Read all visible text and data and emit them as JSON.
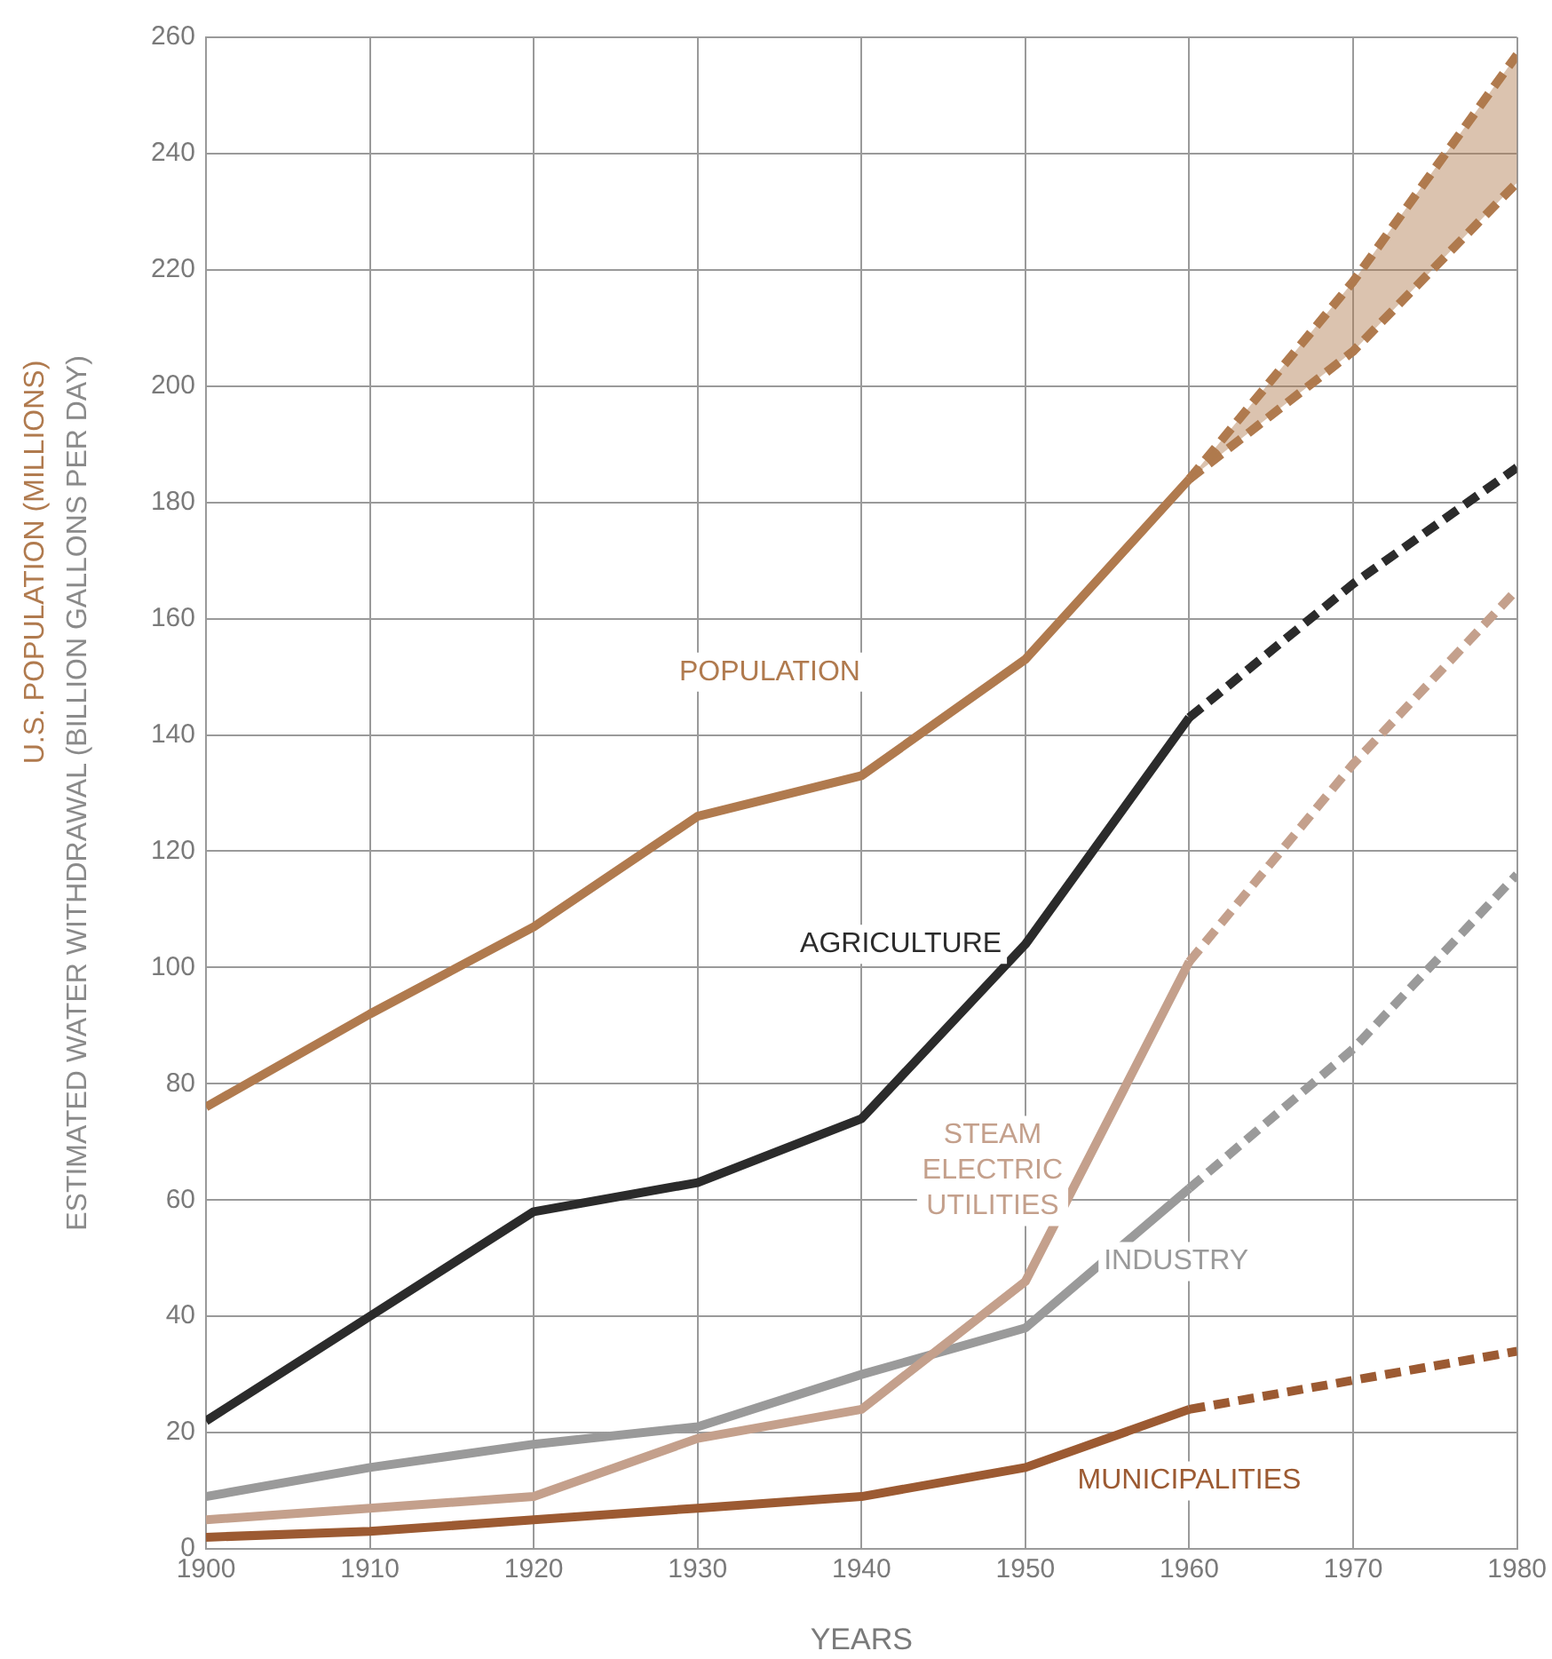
{
  "chart_data": {
    "type": "line",
    "xlabel": "YEARS",
    "ylabel": "ESTIMATED WATER WITHDRAWAL (BILLION GALLONS PER DAY)",
    "xlim": [
      1900,
      1980
    ],
    "xticks": [
      1900,
      1910,
      1920,
      1930,
      1940,
      1950,
      1960,
      1970,
      1980
    ],
    "ylim": [
      0,
      260
    ],
    "yticks": [
      0,
      20,
      40,
      60,
      80,
      100,
      120,
      140,
      160,
      180,
      200,
      220,
      240,
      260
    ],
    "grid": true,
    "legend": false,
    "marker": "none",
    "line_style": "solid",
    "series": [
      {
        "name": "POPULATION",
        "color": "#b07a4e",
        "x": [
          1900,
          1910,
          1920,
          1930,
          1940,
          1950,
          1960
        ],
        "values": [
          76,
          92,
          107,
          126,
          133,
          153,
          184
        ]
      },
      {
        "color": "#b07a4e",
        "line_style": "dashed",
        "x": [
          1960,
          1970,
          1980
        ],
        "values": [
          184,
          218,
          257
        ],
        "lower": [
          184,
          206,
          235
        ],
        "upper": [
          184,
          218,
          257
        ]
      },
      {
        "color": "#b07a4e",
        "line_style": "dashed",
        "x": [
          1960,
          1970,
          1980
        ],
        "values": [
          184,
          206,
          235
        ]
      },
      {
        "name": "AGRICULTURE",
        "color": "#2b2b2b",
        "x": [
          1900,
          1910,
          1920,
          1930,
          1940,
          1950,
          1960
        ],
        "values": [
          22,
          40,
          58,
          63,
          74,
          104,
          143
        ]
      },
      {
        "color": "#2b2b2b",
        "line_style": "dashed",
        "x": [
          1960,
          1970,
          1980
        ],
        "values": [
          143,
          166,
          186
        ]
      },
      {
        "name": "STEAM\nELECTRIC\nUTILITIES",
        "color": "#c4a08c",
        "x": [
          1900,
          1910,
          1920,
          1930,
          1940,
          1950,
          1960
        ],
        "values": [
          5,
          7,
          9,
          19,
          24,
          46,
          101
        ]
      },
      {
        "color": "#c4a08c",
        "line_style": "dashed",
        "x": [
          1960,
          1970,
          1980
        ],
        "values": [
          101,
          135,
          165
        ]
      },
      {
        "name": "INDUSTRY",
        "color": "#9a9a9a",
        "x": [
          1900,
          1910,
          1920,
          1930,
          1940,
          1950,
          1960
        ],
        "values": [
          9,
          14,
          18,
          21,
          30,
          38,
          62
        ]
      },
      {
        "color": "#9a9a9a",
        "line_style": "dashed",
        "x": [
          1960,
          1970,
          1980
        ],
        "values": [
          62,
          86,
          116
        ]
      },
      {
        "name": "MUNICIPALITIES",
        "color": "#9c5a32",
        "x": [
          1900,
          1910,
          1920,
          1930,
          1940,
          1950,
          1960
        ],
        "values": [
          2,
          3,
          5,
          7,
          9,
          14,
          24
        ]
      },
      {
        "color": "#9c5a32",
        "line_style": "dashed",
        "x": [
          1960,
          1970,
          1980
        ],
        "values": [
          24,
          29,
          34
        ]
      }
    ],
    "annotations": [
      "U.S. POPULATION (MILLIONS)"
    ]
  }
}
